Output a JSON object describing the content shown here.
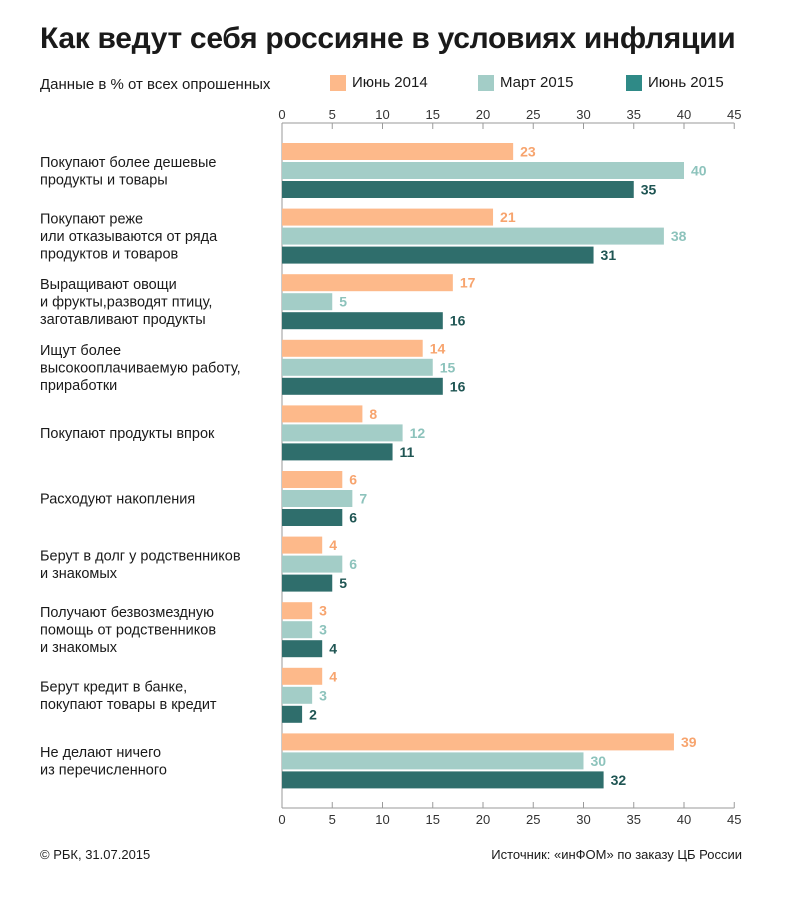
{
  "header": {
    "title": "Как ведут себя россияне в условиях инфляции",
    "subtitle": "Данные в % от всех опрошенных"
  },
  "footer": {
    "left": "© РБК, 31.07.2015",
    "right": "Источник: «инФОМ» по заказу ЦБ России"
  },
  "colors": {
    "s0": "#fdb98a",
    "s1": "#a3cdc7",
    "s2": "#2f6e6c",
    "label0": "#f7a46e",
    "label1": "#8dc3bc",
    "label2": "#1f5553",
    "axis": "#9a9a9a"
  },
  "chart_data": {
    "type": "bar",
    "orientation": "horizontal",
    "title": "Как ведут себя россияне в условиях инфляции",
    "subtitle": "Данные в % от всех опрошенных",
    "xlim": [
      0,
      45
    ],
    "xticks": [
      0,
      5,
      10,
      15,
      20,
      25,
      30,
      35,
      40,
      45
    ],
    "legend_position": "top",
    "categories": [
      [
        "Покупают более дешевые",
        "продукты и товары"
      ],
      [
        "Покупают реже",
        "или отказываются от ряда",
        "продуктов и товаров"
      ],
      [
        "Выращивают овощи",
        "и фрукты,разводят птицу,",
        "заготавливают продукты"
      ],
      [
        "Ищут более",
        "высокооплачиваемую работу,",
        "приработки"
      ],
      [
        "Покупают продукты впрок"
      ],
      [
        "Расходуют накопления"
      ],
      [
        "Берут в долг у родственников",
        "и знакомых"
      ],
      [
        "Получают безвозмездную",
        "помощь от родственников",
        "и знакомых"
      ],
      [
        "Берут кредит в банке,",
        "покупают товары в кредит"
      ],
      [
        "Не делают ничего",
        "из перечисленного"
      ]
    ],
    "series": [
      {
        "name": "Июнь 2014",
        "values": [
          23,
          21,
          17,
          14,
          8,
          6,
          4,
          3,
          4,
          39
        ]
      },
      {
        "name": "Март 2015",
        "values": [
          40,
          38,
          5,
          15,
          12,
          7,
          6,
          3,
          3,
          30
        ]
      },
      {
        "name": "Июнь 2015",
        "values": [
          35,
          31,
          16,
          16,
          11,
          6,
          5,
          4,
          2,
          32
        ]
      }
    ]
  }
}
